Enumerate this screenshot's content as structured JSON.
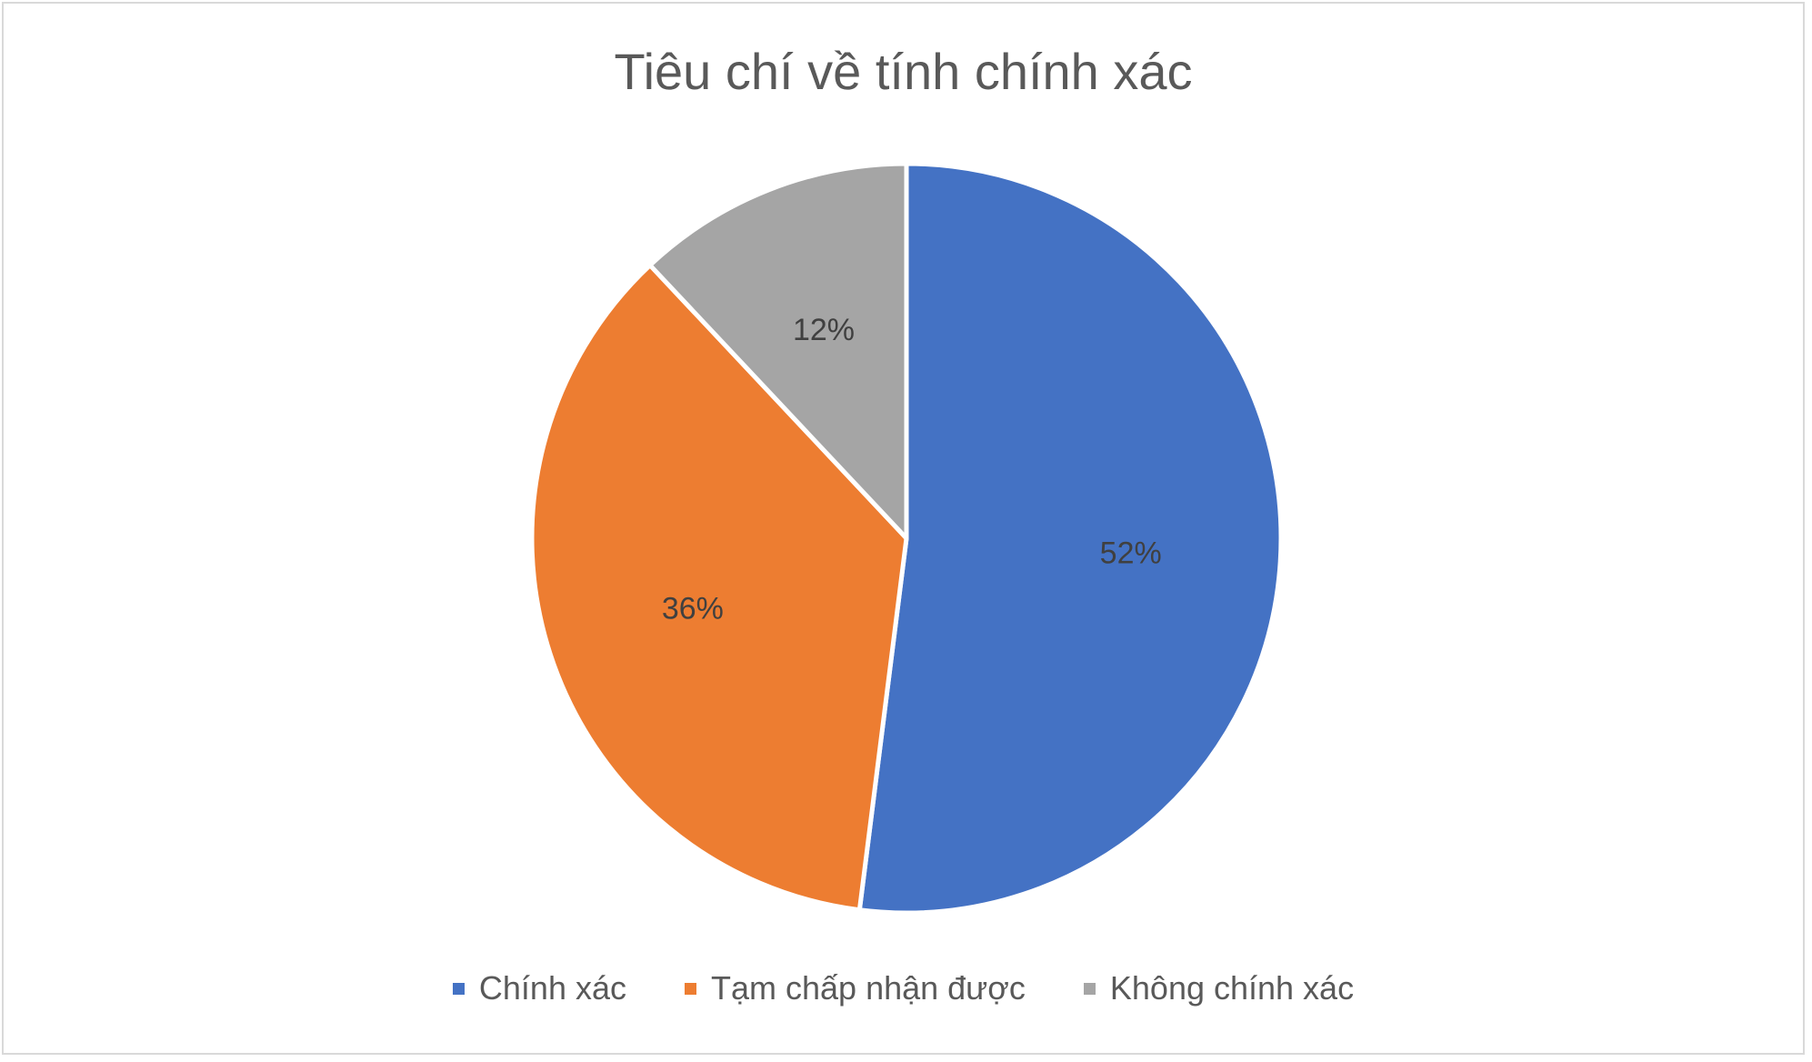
{
  "chart_data": {
    "type": "pie",
    "title": "Tiêu chí về tính chính xác",
    "categories": [
      "Chính xác",
      "Tạm chấp nhận được",
      "Không chính xác"
    ],
    "values": [
      52,
      36,
      12
    ],
    "labels": [
      "52%",
      "36%",
      "12%"
    ],
    "colors": [
      "#4472c4",
      "#ed7d31",
      "#a5a5a5"
    ],
    "legend_position": "bottom"
  }
}
